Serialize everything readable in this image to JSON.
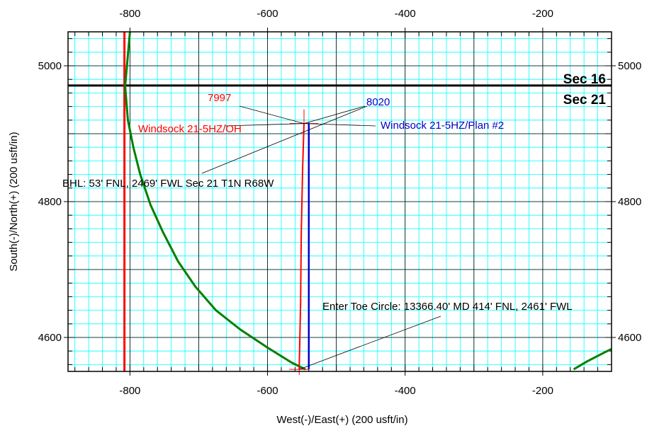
{
  "chart_data": {
    "type": "line",
    "xlabel": "West(-)/East(+) (200 usft/in)",
    "ylabel": "South(-)/North(+) (200 usft/in)",
    "xlim": [
      -890,
      -100
    ],
    "ylim": [
      4550,
      5050
    ],
    "x_ticks": [
      -800,
      -600,
      -400,
      -200
    ],
    "y_ticks": [
      4600,
      4800,
      5000
    ],
    "grid": true,
    "colors": {
      "grid_minor": "#00ffff",
      "grid_major": "#000000",
      "red": "#ff0000",
      "blue": "#0000cc",
      "green": "#008000"
    },
    "series": [
      {
        "name": "Windsock 21-5HZ/OH",
        "color": "#ff0000",
        "points": [
          [
            -547,
            4915
          ],
          [
            -549,
            4850
          ],
          [
            -551,
            4750
          ],
          [
            -552,
            4650
          ],
          [
            -554,
            4553
          ]
        ]
      },
      {
        "name": "Windsock 21-5HZ/Plan #2",
        "color": "#0000cc",
        "points": [
          [
            -540,
            4916
          ],
          [
            -540,
            4553
          ]
        ]
      },
      {
        "color": "#ff0000",
        "points": [
          [
            -808,
            5050
          ],
          [
            -808,
            4550
          ]
        ]
      },
      {
        "color": "#008000",
        "points": [
          [
            -800,
            5050
          ],
          [
            -807,
            4970
          ],
          [
            -803,
            4920
          ],
          [
            -795,
            4880
          ],
          [
            -785,
            4840
          ],
          [
            -770,
            4795
          ],
          [
            -752,
            4755
          ],
          [
            -730,
            4712
          ],
          [
            -705,
            4675
          ],
          [
            -675,
            4640
          ],
          [
            -640,
            4612
          ],
          [
            -600,
            4585
          ],
          [
            -565,
            4563
          ],
          [
            -545,
            4553
          ]
        ]
      },
      {
        "color": "#008000",
        "points": [
          [
            -155,
            4553
          ],
          [
            -135,
            4565
          ],
          [
            -110,
            4578
          ],
          [
            -100,
            4583
          ]
        ]
      }
    ],
    "section_line_y": 4971,
    "labels": {
      "sec16": "Sec 16",
      "sec21": "Sec 21",
      "red_depth": "7997",
      "blue_depth": "8020",
      "red_well": "Windsock 21-5HZ/OH",
      "blue_well": "Windsock 21-5HZ/Plan #2",
      "bhl": "BHL: 53' FNL, 2469' FWL Sec 21 T1N R68W",
      "toe": "Enter Toe Circle: 13366.40' MD 414' FNL, 2461' FWL"
    }
  }
}
